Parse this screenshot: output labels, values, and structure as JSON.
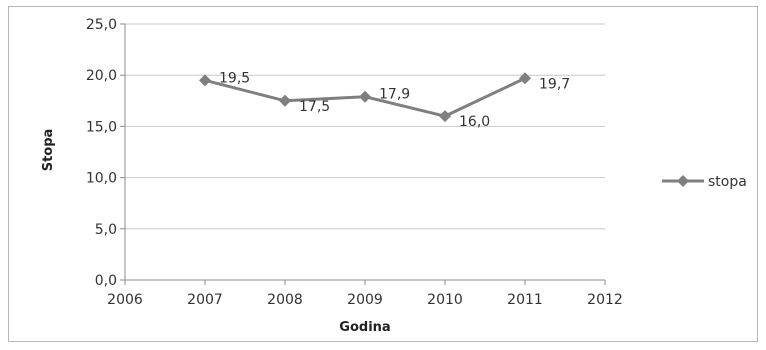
{
  "chart_data": {
    "type": "line",
    "x": [
      2007,
      2008,
      2009,
      2010,
      2011
    ],
    "series": [
      {
        "name": "stopa",
        "values": [
          19.5,
          17.5,
          17.9,
          16.0,
          19.7
        ]
      }
    ],
    "data_labels": [
      "19,5",
      "17,5",
      "17,9",
      "16,0",
      "19,7"
    ],
    "xlabel": "Godina",
    "ylabel": "Stopa",
    "xlim": [
      2006,
      2012
    ],
    "ylim": [
      0,
      25
    ],
    "x_ticks": [
      "2006",
      "2007",
      "2008",
      "2009",
      "2010",
      "2011",
      "2012"
    ],
    "y_ticks": [
      "0,0",
      "5,0",
      "10,0",
      "15,0",
      "20,0",
      "25,0"
    ],
    "grid": true,
    "legend": "right",
    "colors": {
      "series": "#7f7f7f",
      "grid": "#c8c8c8",
      "axis": "#8c8c8c"
    }
  }
}
